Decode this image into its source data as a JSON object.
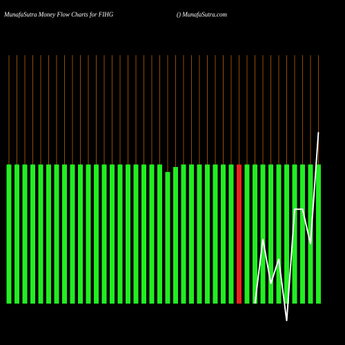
{
  "chart_data": {
    "type": "bar",
    "title": "MunafaSutra  Money Flow  Charts for FIHG",
    "subtitle": "() MunafaSutra.com",
    "values": [
      56,
      56,
      56,
      56,
      56,
      56,
      56,
      56,
      56,
      56,
      56,
      56,
      56,
      56,
      56,
      56,
      56,
      56,
      56,
      56,
      53,
      55,
      56,
      56,
      56,
      56,
      56,
      56,
      56,
      56,
      56,
      56,
      56,
      56,
      56,
      56,
      56,
      56,
      56,
      56
    ],
    "colors": [
      "#22ee22",
      "#22ee22",
      "#22ee22",
      "#22ee22",
      "#22ee22",
      "#22ee22",
      "#22ee22",
      "#22ee22",
      "#22ee22",
      "#22ee22",
      "#22ee22",
      "#22ee22",
      "#22ee22",
      "#22ee22",
      "#22ee22",
      "#22ee22",
      "#22ee22",
      "#22ee22",
      "#22ee22",
      "#22ee22",
      "#22ee22",
      "#22ee22",
      "#22ee22",
      "#22ee22",
      "#22ee22",
      "#22ee22",
      "#22ee22",
      "#22ee22",
      "#22ee22",
      "#ee2222",
      "#22ee22",
      "#22ee22",
      "#22ee22",
      "#22ee22",
      "#22ee22",
      "#22ee22",
      "#22ee22",
      "#22ee22",
      "#22ee22",
      "#22ee22"
    ],
    "line_values": [
      null,
      null,
      null,
      null,
      null,
      null,
      null,
      null,
      null,
      null,
      null,
      null,
      null,
      null,
      null,
      null,
      null,
      null,
      null,
      null,
      null,
      null,
      null,
      null,
      null,
      null,
      null,
      null,
      null,
      null,
      null,
      0,
      26,
      8,
      18,
      -7,
      38,
      38,
      24,
      69
    ],
    "line_color": "#ffffff",
    "guide_color": "#b8610a",
    "ylim": [
      0,
      100
    ]
  }
}
